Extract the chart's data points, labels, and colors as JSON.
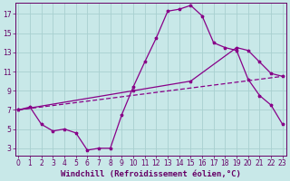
{
  "bg_color": "#c8e8e8",
  "line_color": "#880088",
  "grid_color": "#a8d0d0",
  "axis_label_color": "#660066",
  "tick_color": "#660066",
  "xlabel": "Windchill (Refroidissement éolien,°C)",
  "xlabel_fontsize": 6.5,
  "tick_fontsize": 5.5,
  "xlim": [
    -0.3,
    23.3
  ],
  "ylim": [
    2.2,
    18.2
  ],
  "yticks": [
    3,
    5,
    7,
    9,
    11,
    13,
    15,
    17
  ],
  "xticks": [
    0,
    1,
    2,
    3,
    4,
    5,
    6,
    7,
    8,
    9,
    10,
    11,
    12,
    13,
    14,
    15,
    16,
    17,
    18,
    19,
    20,
    21,
    22,
    23
  ],
  "curve1_x": [
    0,
    1,
    2,
    3,
    4,
    5,
    6,
    7,
    8,
    9,
    10,
    11,
    12,
    13,
    14,
    15,
    16,
    17,
    18,
    19,
    20,
    21,
    22,
    23
  ],
  "curve1_y": [
    7.0,
    7.3,
    5.5,
    4.8,
    5.0,
    4.6,
    2.8,
    3.0,
    3.0,
    6.5,
    9.4,
    12.0,
    14.5,
    17.3,
    17.5,
    17.9,
    16.8,
    14.0,
    13.5,
    13.2,
    10.2,
    8.5,
    7.5,
    5.5
  ],
  "curve2_x": [
    0,
    10,
    15,
    19,
    20,
    21,
    22,
    23
  ],
  "curve2_y": [
    7.0,
    9.0,
    10.0,
    13.5,
    13.2,
    12.0,
    10.8,
    10.5
  ],
  "curve3_x": [
    0,
    23
  ],
  "curve3_y": [
    7.0,
    10.5
  ],
  "figwidth": 3.2,
  "figheight": 2.0,
  "dpi": 100
}
